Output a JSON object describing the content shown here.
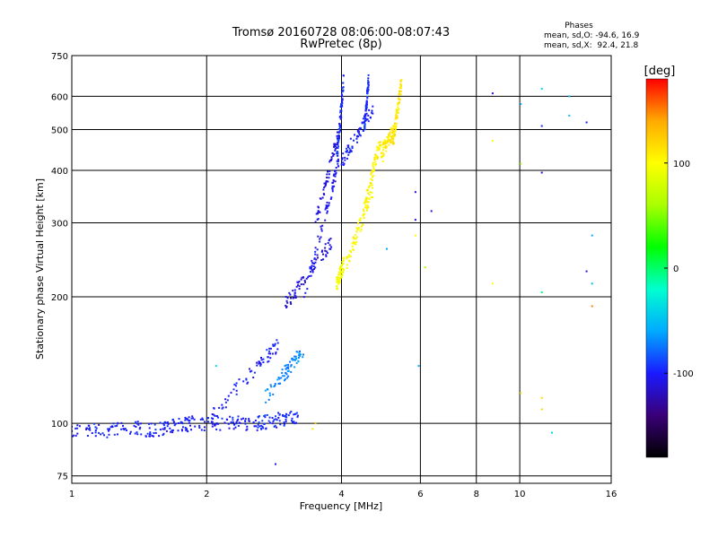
{
  "chart_data": {
    "type": "scatter",
    "title": "Tromsø 20160728 08:06:00-08:07:43",
    "subtitle": "RwPretec (8p)",
    "xlabel": "Frequency [MHz]",
    "ylabel": "Stationary phase Virtual Height [km]",
    "x_scale": "log",
    "y_scale": "log",
    "xlim": [
      1,
      16
    ],
    "ylim": [
      72,
      750
    ],
    "grid": true,
    "x_ticks": [
      1,
      2,
      4,
      6,
      8,
      10,
      16
    ],
    "x_tick_labels": [
      "1",
      "2",
      "4",
      "6",
      "8",
      "10",
      "16"
    ],
    "y_ticks": [
      75,
      100,
      200,
      300,
      400,
      500,
      600,
      750
    ],
    "y_tick_labels": [
      "75",
      "100",
      "200",
      "300",
      "400",
      "500",
      "600",
      "750"
    ],
    "phase_stats": {
      "heading": "Phases",
      "line_o": "mean, sd,O: -94.6, 16.9",
      "line_x": "mean, sd,X:  92.4, 21.8"
    },
    "colorbar": {
      "label": "[deg]",
      "range": [
        -180,
        180
      ],
      "ticks": [
        100,
        0,
        -100
      ],
      "tick_labels": [
        "100",
        "0",
        "-100"
      ],
      "colors": [
        "#000000",
        "#3a0078",
        "#1a1aff",
        "#00aaff",
        "#00ffd0",
        "#00ff00",
        "#aaff00",
        "#ffff00",
        "#ffaa00",
        "#ff0000"
      ]
    },
    "series": [
      {
        "segments": [
          {
            "x": [
              1.0,
              1.45
            ],
            "y": [
              95,
              98
            ],
            "phase": -100
          },
          {
            "x": [
              1.45,
              1.85
            ],
            "y": [
              96,
              100
            ],
            "phase": -100
          },
          {
            "x": [
              1.85,
              2.6
            ],
            "y": [
              100,
              100
            ],
            "phase": -100
          },
          {
            "x": [
              2.6,
              3.2
            ],
            "y": [
              100,
              104
            ],
            "phase": -95
          },
          {
            "x": [
              2.05,
              2.9
            ],
            "y": [
              104,
              155
            ],
            "phase": -100
          },
          {
            "x": [
              2.7,
              3.3
            ],
            "y": [
              115,
              150
            ],
            "phase": -70
          },
          {
            "x": [
              3.0,
              3.8
            ],
            "y": [
              192,
              270
            ],
            "phase": -110
          },
          {
            "x": [
              3.3,
              3.95
            ],
            "y": [
              200,
              420
            ],
            "phase": -105
          },
          {
            "x": [
              3.5,
              4.0
            ],
            "y": [
              300,
              520
            ],
            "phase": -110
          },
          {
            "x": [
              3.9,
              4.05
            ],
            "y": [
              420,
              665
            ],
            "phase": -95
          },
          {
            "x": [
              4.0,
              4.7
            ],
            "y": [
              420,
              560
            ],
            "phase": -100
          },
          {
            "x": [
              4.5,
              4.6
            ],
            "y": [
              500,
              660
            ],
            "phase": -95
          }
        ]
      },
      {
        "segments": [
          {
            "x": [
              3.9,
              4.05
            ],
            "y": [
              215,
              240
            ],
            "phase": 95
          },
          {
            "x": [
              4.1,
              4.7
            ],
            "y": [
              240,
              360
            ],
            "phase": 100
          },
          {
            "x": [
              4.5,
              4.9
            ],
            "y": [
              330,
              480
            ],
            "phase": 105
          },
          {
            "x": [
              4.9,
              5.25
            ],
            "y": [
              440,
              500
            ],
            "phase": 110
          },
          {
            "x": [
              5.2,
              5.45
            ],
            "y": [
              460,
              650
            ],
            "phase": 110
          }
        ]
      }
    ],
    "scatter_points": [
      {
        "x": 8.7,
        "y": 610,
        "phase": -105
      },
      {
        "x": 8.7,
        "y": 470,
        "phase": 100
      },
      {
        "x": 8.7,
        "y": 215,
        "phase": 100
      },
      {
        "x": 10.05,
        "y": 575,
        "phase": -60
      },
      {
        "x": 10.05,
        "y": 415,
        "phase": 60
      },
      {
        "x": 10.05,
        "y": 118,
        "phase": 110
      },
      {
        "x": 11.2,
        "y": 625,
        "phase": -40
      },
      {
        "x": 11.2,
        "y": 510,
        "phase": -95
      },
      {
        "x": 11.2,
        "y": 395,
        "phase": -110
      },
      {
        "x": 11.2,
        "y": 205,
        "phase": 0
      },
      {
        "x": 11.2,
        "y": 115,
        "phase": 120
      },
      {
        "x": 11.2,
        "y": 108,
        "phase": 120
      },
      {
        "x": 11.8,
        "y": 95,
        "phase": -40
      },
      {
        "x": 12.9,
        "y": 600,
        "phase": -50
      },
      {
        "x": 12.9,
        "y": 540,
        "phase": -50
      },
      {
        "x": 14.1,
        "y": 520,
        "phase": -100
      },
      {
        "x": 14.1,
        "y": 230,
        "phase": -110
      },
      {
        "x": 14.5,
        "y": 280,
        "phase": -60
      },
      {
        "x": 14.5,
        "y": 215,
        "phase": -50
      },
      {
        "x": 14.5,
        "y": 190,
        "phase": 150
      },
      {
        "x": 5.85,
        "y": 355,
        "phase": -110
      },
      {
        "x": 5.85,
        "y": 305,
        "phase": -110
      },
      {
        "x": 5.85,
        "y": 280,
        "phase": 100
      },
      {
        "x": 6.35,
        "y": 320,
        "phase": -110
      },
      {
        "x": 6.15,
        "y": 235,
        "phase": 60
      },
      {
        "x": 5.95,
        "y": 137,
        "phase": -60
      },
      {
        "x": 4.95,
        "y": 420,
        "phase": 100
      },
      {
        "x": 5.05,
        "y": 260,
        "phase": -60
      },
      {
        "x": 3.5,
        "y": 100,
        "phase": 130
      },
      {
        "x": 3.45,
        "y": 97,
        "phase": 110
      },
      {
        "x": 2.85,
        "y": 80,
        "phase": -105
      },
      {
        "x": 2.1,
        "y": 137,
        "phase": -40
      }
    ]
  }
}
